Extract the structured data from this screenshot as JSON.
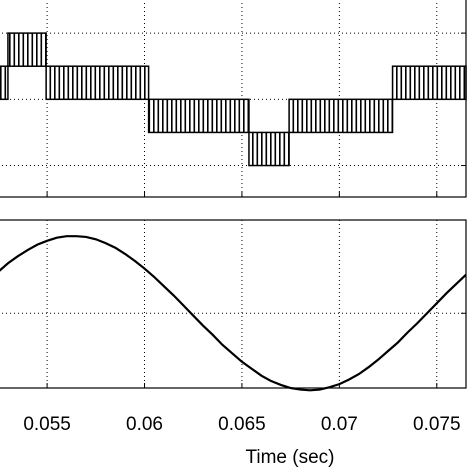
{
  "chart_data": [
    {
      "type": "band",
      "color": "#000000",
      "segments": [
        {
          "x": [
            0.05248,
            0.05299
          ],
          "range": [
            0,
            1
          ]
        },
        {
          "x": [
            0.05299,
            0.05495
          ],
          "range": [
            1,
            2
          ]
        },
        {
          "x": [
            0.05495,
            0.06021
          ],
          "range": [
            0,
            1
          ]
        },
        {
          "x": [
            0.06021,
            0.06536
          ],
          "range": [
            -1,
            0
          ]
        },
        {
          "x": [
            0.06536,
            0.06742
          ],
          "range": [
            -2,
            -1
          ]
        },
        {
          "x": [
            0.06742,
            0.07273
          ],
          "range": [
            -1,
            0
          ]
        },
        {
          "x": [
            0.07273,
            0.0765
          ],
          "range": [
            0,
            1
          ]
        }
      ],
      "xlim": [
        0.05248,
        0.0765
      ],
      "ylim": [
        -2.95,
        3.03
      ],
      "xticks": [
        0.055,
        0.06,
        0.065,
        0.07,
        0.075
      ],
      "yticks": [
        -2,
        0,
        2
      ],
      "grid": true
    },
    {
      "type": "line",
      "color": "#000000",
      "xlabel": "Time (sec)",
      "x": [
        0.0525,
        0.053,
        0.0535,
        0.054,
        0.0545,
        0.055,
        0.0555,
        0.056,
        0.0565,
        0.057,
        0.0575,
        0.058,
        0.0585,
        0.059,
        0.0595,
        0.06,
        0.0605,
        0.061,
        0.0615,
        0.062,
        0.0625,
        0.063,
        0.0635,
        0.064,
        0.0645,
        0.065,
        0.0655,
        0.066,
        0.0665,
        0.067,
        0.0675,
        0.068,
        0.0685,
        0.069,
        0.0695,
        0.07,
        0.0705,
        0.071,
        0.0715,
        0.072,
        0.0725,
        0.073,
        0.0735,
        0.074,
        0.0745,
        0.075,
        0.0755,
        0.076,
        0.0765
      ],
      "values": [
        0.54,
        0.65,
        0.74,
        0.82,
        0.89,
        0.94,
        0.98,
        1.0,
        1.0,
        0.99,
        0.96,
        0.91,
        0.85,
        0.77,
        0.68,
        0.58,
        0.47,
        0.35,
        0.23,
        0.1,
        -0.03,
        -0.16,
        -0.28,
        -0.41,
        -0.52,
        -0.63,
        -0.72,
        -0.81,
        -0.88,
        -0.93,
        -0.97,
        -0.99,
        -1.0,
        -0.99,
        -0.96,
        -0.92,
        -0.86,
        -0.79,
        -0.7,
        -0.6,
        -0.49,
        -0.38,
        -0.25,
        -0.13,
        0.0,
        0.13,
        0.26,
        0.38,
        0.5
      ],
      "xlim": [
        0.05248,
        0.0765
      ],
      "ylim": [
        -0.97,
        1.21
      ],
      "xticks": [
        0.055,
        0.06,
        0.065,
        0.07,
        0.075
      ],
      "yticks": [
        0
      ],
      "grid": true
    }
  ]
}
